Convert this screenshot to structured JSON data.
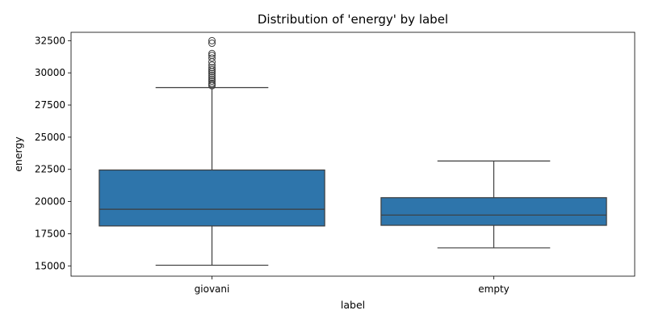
{
  "chart_data": {
    "type": "box",
    "title": "Distribution of 'energy' by label",
    "xlabel": "label",
    "ylabel": "energy",
    "ylim": [
      14200,
      33150
    ],
    "yticks": [
      15000,
      17500,
      20000,
      22500,
      25000,
      27500,
      30000,
      32500
    ],
    "ytick_labels": [
      "15000",
      "17500",
      "20000",
      "22500",
      "25000",
      "27500",
      "30000",
      "32500"
    ],
    "categories": [
      "giovani",
      "empty"
    ],
    "box_color": "#2e75ab",
    "line_color": "#3d3d3d",
    "boxes": [
      {
        "category": "giovani",
        "whisker_low": 15050,
        "q1": 18100,
        "median": 19400,
        "q3": 22450,
        "whisker_high": 28850,
        "outliers": [
          29000,
          29100,
          29200,
          29350,
          29500,
          29650,
          29800,
          29950,
          30100,
          30250,
          30400,
          30600,
          30850,
          31150,
          31350,
          31500,
          32300,
          32500
        ]
      },
      {
        "category": "empty",
        "whisker_low": 16400,
        "q1": 18150,
        "median": 18950,
        "q3": 20300,
        "whisker_high": 23150,
        "outliers": []
      }
    ]
  }
}
